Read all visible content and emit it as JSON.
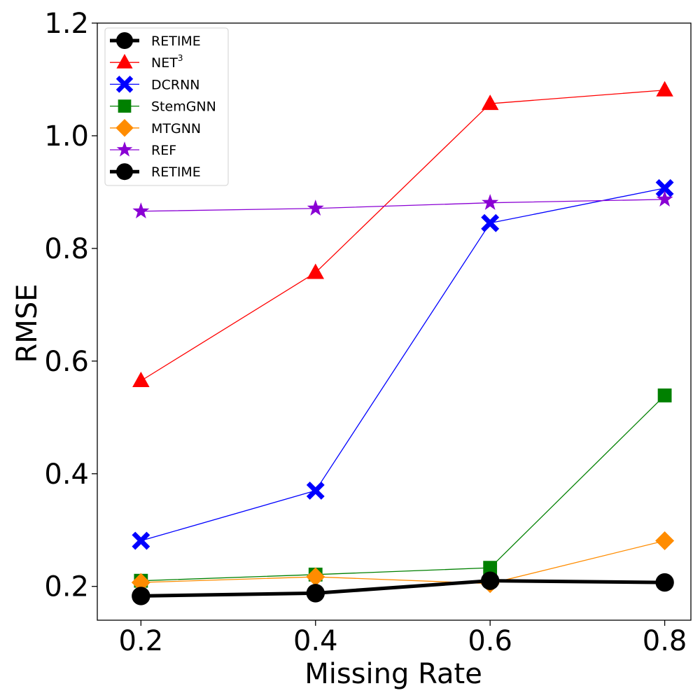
{
  "chart_data": {
    "type": "line",
    "title": "",
    "xlabel": "Missing Rate",
    "ylabel": "RMSE",
    "x": [
      0.2,
      0.4,
      0.6,
      0.8
    ],
    "x_tick_labels": [
      "0.2",
      "0.4",
      "0.6",
      "0.8"
    ],
    "xlim": [
      0.15,
      0.83
    ],
    "y_ticks": [
      0.2,
      0.4,
      0.6,
      0.8,
      1.0,
      1.2
    ],
    "y_tick_labels": [
      "0.2",
      "0.4",
      "0.6",
      "0.8",
      "1.0",
      "1.2"
    ],
    "ylim": [
      0.14,
      1.2
    ],
    "grid": false,
    "legend_position": "top-left",
    "legend_extra": {
      "name": "RETIME",
      "color": "#000000",
      "marker": "circle",
      "width": "thick"
    },
    "series": [
      {
        "name": "NET",
        "name_sup": "3",
        "color": "#ff0000",
        "marker": "triangle",
        "width": "thin",
        "values": [
          0.565,
          0.757,
          1.057,
          1.081
        ]
      },
      {
        "name": "DCRNN",
        "color": "#0000ff",
        "marker": "x",
        "width": "thin",
        "values": [
          0.281,
          0.37,
          0.845,
          0.907
        ]
      },
      {
        "name": "StemGNN",
        "color": "#008000",
        "marker": "square",
        "width": "thin",
        "values": [
          0.21,
          0.221,
          0.233,
          0.539
        ]
      },
      {
        "name": "MTGNN",
        "color": "#ff8c00",
        "marker": "diamond",
        "width": "thin",
        "values": [
          0.207,
          0.217,
          0.205,
          0.281
        ]
      },
      {
        "name": "REF",
        "color": "#8a00d4",
        "marker": "star",
        "width": "thin",
        "values": [
          0.866,
          0.871,
          0.881,
          0.887
        ]
      },
      {
        "name": "RETIME",
        "color": "#000000",
        "marker": "circle",
        "width": "thick",
        "values": [
          0.183,
          0.188,
          0.21,
          0.207
        ]
      }
    ]
  }
}
